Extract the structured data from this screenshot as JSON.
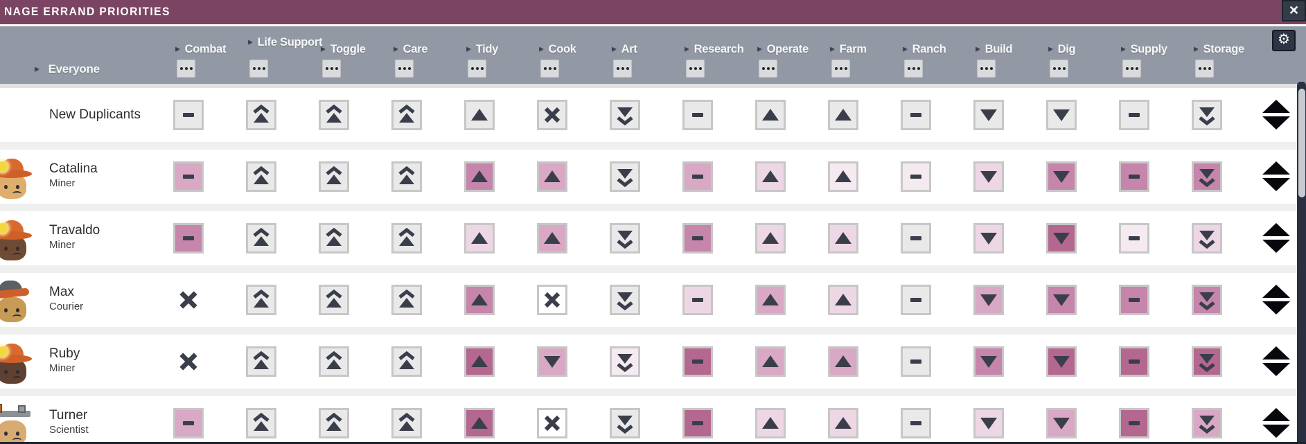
{
  "title_bar": {
    "title": "NAGE ERRAND PRIORITIES",
    "close_icon": "✕"
  },
  "header": {
    "triangle_icon": "►",
    "everyone": {
      "id": "everyone",
      "label": "Everyone"
    },
    "gear_icon": "⚙",
    "columns": [
      {
        "id": "combat",
        "label": "Combat"
      },
      {
        "id": "life-support",
        "label": "Life Support"
      },
      {
        "id": "toggle",
        "label": "Toggle"
      },
      {
        "id": "care",
        "label": "Care"
      },
      {
        "id": "tidy",
        "label": "Tidy"
      },
      {
        "id": "cook",
        "label": "Cook"
      },
      {
        "id": "art",
        "label": "Art"
      },
      {
        "id": "research",
        "label": "Research"
      },
      {
        "id": "operate",
        "label": "Operate"
      },
      {
        "id": "farm",
        "label": "Farm"
      },
      {
        "id": "ranch",
        "label": "Ranch"
      },
      {
        "id": "build",
        "label": "Build"
      },
      {
        "id": "dig",
        "label": "Dig"
      },
      {
        "id": "supply",
        "label": "Supply"
      },
      {
        "id": "storage",
        "label": "Storage"
      }
    ]
  },
  "palette": {
    "gray": "#e9e9e9",
    "p1": "#f6eaf1",
    "p2": "#eed7e4",
    "p3": "#d8a8c4",
    "p4": "#c685aa",
    "p5": "#b5688f",
    "white": "#ffffff",
    "glyph": "#3a3e4b",
    "accent_title": "#7c4463",
    "accent_header": "#9298a4"
  },
  "glyph_legend": {
    "up2": "very-high-priority double-up arrow",
    "up1": "high-priority up arrow",
    "dash": "standard-priority dash",
    "down1": "low-priority down arrow",
    "down2": "very-low-priority double-down arrow",
    "x": "disabled X"
  },
  "rows": [
    {
      "name": "New Duplicants",
      "job": null,
      "avatar": null,
      "cells": [
        {
          "g": "dash",
          "t": "gray"
        },
        {
          "g": "up2",
          "t": "gray"
        },
        {
          "g": "up2",
          "t": "gray"
        },
        {
          "g": "up2",
          "t": "gray"
        },
        {
          "g": "up1",
          "t": "gray"
        },
        {
          "g": "x",
          "t": "gray"
        },
        {
          "g": "down2",
          "t": "gray"
        },
        {
          "g": "dash",
          "t": "gray"
        },
        {
          "g": "up1",
          "t": "gray"
        },
        {
          "g": "up1",
          "t": "gray"
        },
        {
          "g": "dash",
          "t": "gray"
        },
        {
          "g": "down1",
          "t": "gray"
        },
        {
          "g": "down1",
          "t": "gray"
        },
        {
          "g": "dash",
          "t": "gray"
        },
        {
          "g": "down2",
          "t": "gray"
        }
      ]
    },
    {
      "name": "Catalina",
      "job": "Miner",
      "avatar": {
        "skin": "#dfae6b",
        "hat": "miner"
      },
      "cells": [
        {
          "g": "dash",
          "t": "p3"
        },
        {
          "g": "up2",
          "t": "gray"
        },
        {
          "g": "up2",
          "t": "gray"
        },
        {
          "g": "up2",
          "t": "gray"
        },
        {
          "g": "up1",
          "t": "p4"
        },
        {
          "g": "up1",
          "t": "p3"
        },
        {
          "g": "down2",
          "t": "gray"
        },
        {
          "g": "dash",
          "t": "p3"
        },
        {
          "g": "up1",
          "t": "p2"
        },
        {
          "g": "up1",
          "t": "p1"
        },
        {
          "g": "dash",
          "t": "p1"
        },
        {
          "g": "down1",
          "t": "p2"
        },
        {
          "g": "down1",
          "t": "p4"
        },
        {
          "g": "dash",
          "t": "p4"
        },
        {
          "g": "down2",
          "t": "p4"
        }
      ]
    },
    {
      "name": "Travaldo",
      "job": "Miner",
      "avatar": {
        "skin": "#6f4b33",
        "hat": "miner"
      },
      "cells": [
        {
          "g": "dash",
          "t": "p4"
        },
        {
          "g": "up2",
          "t": "gray"
        },
        {
          "g": "up2",
          "t": "gray"
        },
        {
          "g": "up2",
          "t": "gray"
        },
        {
          "g": "up1",
          "t": "p2"
        },
        {
          "g": "up1",
          "t": "p3"
        },
        {
          "g": "down2",
          "t": "gray"
        },
        {
          "g": "dash",
          "t": "p4"
        },
        {
          "g": "up1",
          "t": "p2"
        },
        {
          "g": "up1",
          "t": "p2"
        },
        {
          "g": "dash",
          "t": "gray"
        },
        {
          "g": "down1",
          "t": "p2"
        },
        {
          "g": "down1",
          "t": "p5"
        },
        {
          "g": "dash",
          "t": "p1"
        },
        {
          "g": "down2",
          "t": "p2"
        }
      ]
    },
    {
      "name": "Max",
      "job": "Courier",
      "avatar": {
        "skin": "#c79b55",
        "hat": "cap"
      },
      "cells": [
        {
          "g": "x",
          "t": "none"
        },
        {
          "g": "up2",
          "t": "gray"
        },
        {
          "g": "up2",
          "t": "gray"
        },
        {
          "g": "up2",
          "t": "gray"
        },
        {
          "g": "up1",
          "t": "p4"
        },
        {
          "g": "x",
          "t": "white"
        },
        {
          "g": "down2",
          "t": "gray"
        },
        {
          "g": "dash",
          "t": "p2"
        },
        {
          "g": "up1",
          "t": "p3"
        },
        {
          "g": "up1",
          "t": "p2"
        },
        {
          "g": "dash",
          "t": "gray"
        },
        {
          "g": "down1",
          "t": "p3"
        },
        {
          "g": "down1",
          "t": "p4"
        },
        {
          "g": "dash",
          "t": "p4"
        },
        {
          "g": "down2",
          "t": "p4"
        }
      ]
    },
    {
      "name": "Ruby",
      "job": "Miner",
      "avatar": {
        "skin": "#5f4131",
        "hat": "miner"
      },
      "cells": [
        {
          "g": "x",
          "t": "none"
        },
        {
          "g": "up2",
          "t": "gray"
        },
        {
          "g": "up2",
          "t": "gray"
        },
        {
          "g": "up2",
          "t": "gray"
        },
        {
          "g": "up1",
          "t": "p5"
        },
        {
          "g": "down1",
          "t": "p3"
        },
        {
          "g": "down2",
          "t": "p1"
        },
        {
          "g": "dash",
          "t": "p5"
        },
        {
          "g": "up1",
          "t": "p3"
        },
        {
          "g": "up1",
          "t": "p3"
        },
        {
          "g": "dash",
          "t": "gray"
        },
        {
          "g": "down1",
          "t": "p4"
        },
        {
          "g": "down1",
          "t": "p5"
        },
        {
          "g": "dash",
          "t": "p5"
        },
        {
          "g": "down2",
          "t": "p5"
        }
      ]
    },
    {
      "name": "Turner",
      "job": "Scientist",
      "avatar": {
        "skin": "#d7ab72",
        "hat": "rig"
      },
      "cells": [
        {
          "g": "dash",
          "t": "p3"
        },
        {
          "g": "up2",
          "t": "gray"
        },
        {
          "g": "up2",
          "t": "gray"
        },
        {
          "g": "up2",
          "t": "gray"
        },
        {
          "g": "up1",
          "t": "p5"
        },
        {
          "g": "x",
          "t": "white"
        },
        {
          "g": "down2",
          "t": "gray"
        },
        {
          "g": "dash",
          "t": "p5"
        },
        {
          "g": "up1",
          "t": "p2"
        },
        {
          "g": "up1",
          "t": "p2"
        },
        {
          "g": "dash",
          "t": "gray"
        },
        {
          "g": "down1",
          "t": "p2"
        },
        {
          "g": "down1",
          "t": "p3"
        },
        {
          "g": "dash",
          "t": "p5"
        },
        {
          "g": "down2",
          "t": "p3"
        }
      ]
    }
  ]
}
